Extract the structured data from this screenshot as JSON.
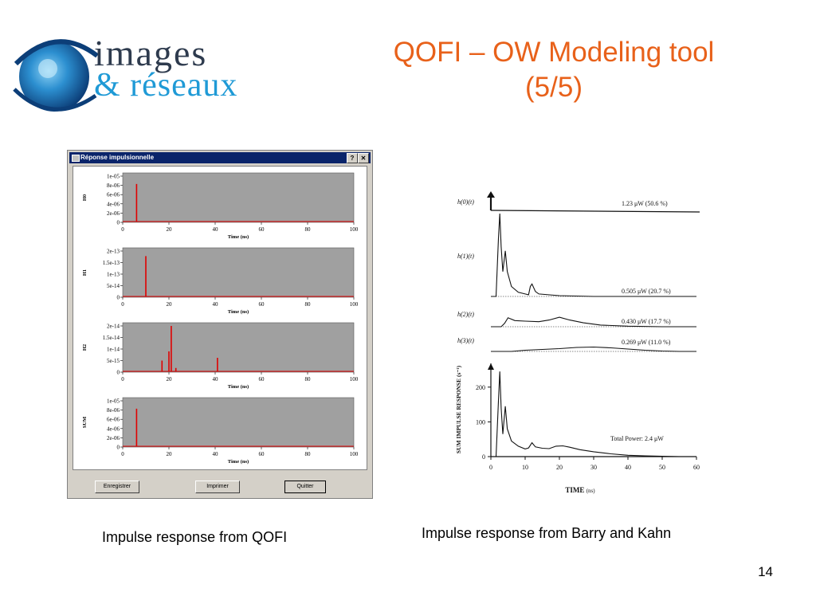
{
  "slide": {
    "title_line1": "QOFI – OW Modeling tool",
    "title_line2": "(5/5)",
    "logo_line1": "images",
    "logo_line2": "& réseaux",
    "caption_left": "Impulse response from QOFI",
    "caption_right": "Impulse response from Barry and Kahn",
    "page_number": "14"
  },
  "colors": {
    "title": "#e8611a",
    "logo_navy": "#2e3b4e",
    "logo_cyan": "#1f9ad6",
    "spike": "#e00000",
    "plot_bg": "#a0a0a0"
  },
  "window": {
    "title": "Réponse impulsionnelle",
    "help_button": "?",
    "close_button": "✕",
    "buttons": [
      "Enregistrer",
      "Imprimer",
      "Quitter"
    ]
  },
  "chart_data": [
    {
      "type": "line",
      "ylabel": "H0",
      "xlabel": "Time (ns)",
      "xlim": [
        0,
        100
      ],
      "ylim": [
        0,
        1e-05
      ],
      "x_ticks": [
        "0",
        "20",
        "40",
        "60",
        "80",
        "100"
      ],
      "y_ticks": [
        "0",
        "2e-06",
        "4e-06",
        "6e-06",
        "8e-06",
        "1e-05"
      ],
      "spikes": [
        {
          "x": 6,
          "y": 8.3e-06
        }
      ]
    },
    {
      "type": "line",
      "ylabel": "H1",
      "xlabel": "Time (ns)",
      "xlim": [
        0,
        100
      ],
      "ylim": [
        0,
        2e-13
      ],
      "x_ticks": [
        "0",
        "20",
        "40",
        "60",
        "80",
        "100"
      ],
      "y_ticks": [
        "0",
        "5e-14",
        "1e-13",
        "1.5e-13",
        "2e-13"
      ],
      "spikes": [
        {
          "x": 10,
          "y": 1.78e-13
        }
      ]
    },
    {
      "type": "line",
      "ylabel": "H2",
      "xlabel": "Time (ns)",
      "xlim": [
        0,
        100
      ],
      "ylim": [
        0,
        2e-14
      ],
      "x_ticks": [
        "0",
        "20",
        "40",
        "60",
        "80",
        "100"
      ],
      "y_ticks": [
        "0",
        "5e-15",
        "1e-14",
        "1.5e-14",
        "2e-14"
      ],
      "spikes": [
        {
          "x": 17,
          "y": 5e-15
        },
        {
          "x": 20,
          "y": 9e-15
        },
        {
          "x": 21,
          "y": 2e-14
        },
        {
          "x": 23,
          "y": 1.8e-15
        },
        {
          "x": 41,
          "y": 6.2e-15
        }
      ]
    },
    {
      "type": "line",
      "ylabel": "SUM",
      "xlabel": "Time (ns)",
      "xlim": [
        0,
        100
      ],
      "ylim": [
        0,
        1e-05
      ],
      "x_ticks": [
        "0",
        "20",
        "40",
        "60",
        "80",
        "100"
      ],
      "y_ticks": [
        "0",
        "2e-06",
        "4e-06",
        "6e-06",
        "8e-06",
        "1e-05"
      ],
      "spikes": [
        {
          "x": 6,
          "y": 8.3e-06
        }
      ]
    }
  ],
  "kahn": {
    "h0_label": "h(0)(t)",
    "h1_label": "h(1)(t)",
    "h2_label": "h(2)(t)",
    "h3_label": "h(3)(t)",
    "h0_value": "1.23 μW (50.6 %)",
    "h1_value": "0.505 μW (20.7 %)",
    "h2_value": "0.430 μW (17.7 %)",
    "h3_value": "0.269 μW (11.0 %)",
    "total": "Total Power: 2.4 μW",
    "ylabel": "SUM  IMPULSE RESPONSE (s⁻¹)",
    "xlabel": "TIME",
    "xunit": "(ns)",
    "xlim": [
      0,
      60
    ],
    "ylim": [
      0,
      250
    ],
    "x_ticks": [
      "0",
      "10",
      "20",
      "30",
      "40",
      "50",
      "60"
    ],
    "y_ticks": [
      "0",
      "100",
      "200"
    ],
    "sum_curve": [
      [
        0,
        0
      ],
      [
        1.5,
        0
      ],
      [
        2.2,
        160
      ],
      [
        2.6,
        245
      ],
      [
        3.0,
        140
      ],
      [
        3.5,
        65
      ],
      [
        4.2,
        145
      ],
      [
        4.8,
        80
      ],
      [
        6,
        45
      ],
      [
        8,
        30
      ],
      [
        10,
        22
      ],
      [
        11,
        25
      ],
      [
        12,
        40
      ],
      [
        13,
        28
      ],
      [
        15,
        24
      ],
      [
        17,
        23
      ],
      [
        19,
        30
      ],
      [
        21,
        31
      ],
      [
        23,
        27
      ],
      [
        26,
        20
      ],
      [
        30,
        14
      ],
      [
        35,
        8
      ],
      [
        40,
        4
      ],
      [
        45,
        2
      ],
      [
        50,
        1
      ],
      [
        55,
        0
      ],
      [
        60,
        0
      ]
    ],
    "h1_curve": [
      [
        0,
        0
      ],
      [
        1.5,
        0
      ],
      [
        2.2,
        0.7
      ],
      [
        2.6,
        1.0
      ],
      [
        3.0,
        0.6
      ],
      [
        3.5,
        0.3
      ],
      [
        4.2,
        0.55
      ],
      [
        4.8,
        0.3
      ],
      [
        6,
        0.12
      ],
      [
        8,
        0.05
      ],
      [
        10,
        0.03
      ],
      [
        11,
        0.02
      ],
      [
        11.5,
        0.12
      ],
      [
        12,
        0.15
      ],
      [
        13,
        0.06
      ],
      [
        14,
        0.03
      ],
      [
        20,
        0.01
      ],
      [
        30,
        0
      ],
      [
        60,
        0
      ]
    ],
    "h2_curve": [
      [
        0,
        0
      ],
      [
        3,
        0
      ],
      [
        4,
        0.3
      ],
      [
        5,
        0.8
      ],
      [
        7,
        0.55
      ],
      [
        10,
        0.5
      ],
      [
        14,
        0.45
      ],
      [
        17,
        0.6
      ],
      [
        20,
        0.85
      ],
      [
        23,
        0.6
      ],
      [
        27,
        0.35
      ],
      [
        32,
        0.15
      ],
      [
        40,
        0.05
      ],
      [
        50,
        0
      ],
      [
        60,
        0
      ]
    ],
    "h3_curve": [
      [
        0,
        0
      ],
      [
        6,
        0
      ],
      [
        10,
        0.15
      ],
      [
        15,
        0.25
      ],
      [
        20,
        0.35
      ],
      [
        25,
        0.5
      ],
      [
        30,
        0.55
      ],
      [
        35,
        0.45
      ],
      [
        40,
        0.3
      ],
      [
        45,
        0.15
      ],
      [
        50,
        0.05
      ],
      [
        55,
        0
      ],
      [
        60,
        0
      ]
    ]
  }
}
